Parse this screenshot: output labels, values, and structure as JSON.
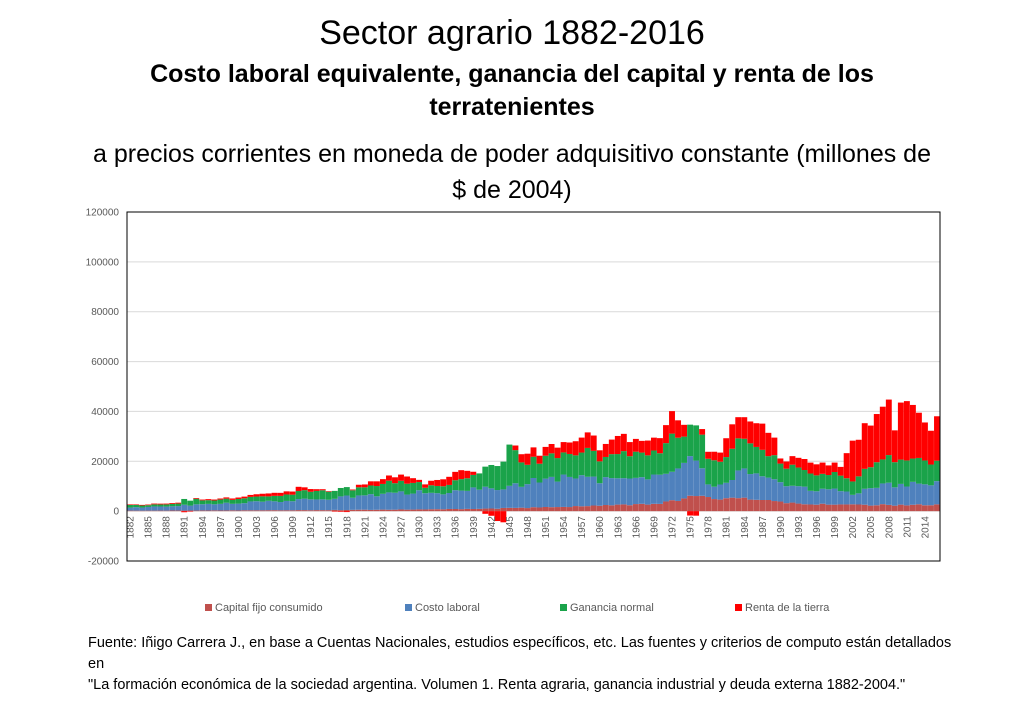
{
  "title": {
    "main": "Sector agrario 1882-2016",
    "subtitle": "Costo laboral equivalente, ganancia del capital y renta de los terratenientes",
    "subtitle2": "a precios corrientes en moneda de poder adquisitivo constante (millones de $ de 2004)"
  },
  "source": {
    "line1": "Fuente: Iñigo Carrera J.,  en base a Cuentas Nacionales, estudios específicos, etc. Las fuentes y criterios de computo están detallados en",
    "line2": "\"La formación económica de la sociedad argentina. Volumen 1. Renta agraria, ganancia industrial y deuda externa 1882-2004.\""
  },
  "chart_data": {
    "type": "bar",
    "stacked": true,
    "x_start": 1882,
    "x_end": 2016,
    "x_tick_labels": [
      "1882",
      "1885",
      "1888",
      "1891",
      "1894",
      "1897",
      "1900",
      "1903",
      "1906",
      "1909",
      "1912",
      "1915",
      "1918",
      "1921",
      "1924",
      "1927",
      "1930",
      "1933",
      "1936",
      "1939",
      "1942",
      "1945",
      "1948",
      "1951",
      "1954",
      "1957",
      "1960",
      "1963",
      "1966",
      "1969",
      "1972",
      "1975",
      "1978",
      "1981",
      "1984",
      "1987",
      "1990",
      "1993",
      "1996",
      "1999",
      "2002",
      "2005",
      "2008",
      "2011",
      "2014"
    ],
    "ylim": [
      -20000,
      120000
    ],
    "y_ticks": [
      -20000,
      0,
      20000,
      40000,
      60000,
      80000,
      100000,
      120000
    ],
    "y_tick_labels": [
      "-20000",
      "0",
      "20000",
      "40000",
      "60000",
      "80000",
      "100000",
      "120000"
    ],
    "grid": true,
    "legend_position": "bottom",
    "series": [
      {
        "name": "Capital fijo consumido",
        "color": "#C0504D",
        "anchors": [
          [
            1882,
            200
          ],
          [
            1900,
            300
          ],
          [
            1920,
            500
          ],
          [
            1940,
            900
          ],
          [
            1950,
            1500
          ],
          [
            1960,
            2200
          ],
          [
            1970,
            3000
          ],
          [
            1974,
            5000
          ],
          [
            1976,
            6000
          ],
          [
            1980,
            5000
          ],
          [
            1984,
            5500
          ],
          [
            1990,
            3500
          ],
          [
            1995,
            3000
          ],
          [
            2000,
            2500
          ],
          [
            2005,
            2500
          ],
          [
            2010,
            2500
          ],
          [
            2016,
            2500
          ]
        ]
      },
      {
        "name": "Costo laboral",
        "color": "#4F81BD",
        "anchors": [
          [
            1882,
            1200
          ],
          [
            1890,
            2000
          ],
          [
            1900,
            3000
          ],
          [
            1910,
            4000
          ],
          [
            1920,
            5500
          ],
          [
            1930,
            7000
          ],
          [
            1935,
            6500
          ],
          [
            1940,
            8000
          ],
          [
            1945,
            8500
          ],
          [
            1950,
            11000
          ],
          [
            1955,
            12000
          ],
          [
            1960,
            10000
          ],
          [
            1965,
            12000
          ],
          [
            1970,
            11000
          ],
          [
            1974,
            14000
          ],
          [
            1976,
            15000
          ],
          [
            1978,
            5000
          ],
          [
            1981,
            6000
          ],
          [
            1984,
            12000
          ],
          [
            1986,
            10000
          ],
          [
            1990,
            8000
          ],
          [
            1995,
            6000
          ],
          [
            2000,
            6000
          ],
          [
            2002,
            4000
          ],
          [
            2006,
            7500
          ],
          [
            2010,
            8500
          ],
          [
            2016,
            8500
          ]
        ]
      },
      {
        "name": "Ganancia normal",
        "color": "#1AA34A",
        "anchors": [
          [
            1882,
            1000
          ],
          [
            1885,
            800
          ],
          [
            1890,
            1000
          ],
          [
            1891,
            2500
          ],
          [
            1895,
            1500
          ],
          [
            1900,
            1800
          ],
          [
            1905,
            2000
          ],
          [
            1910,
            3000
          ],
          [
            1915,
            3500
          ],
          [
            1920,
            3000
          ],
          [
            1925,
            4500
          ],
          [
            1929,
            4000
          ],
          [
            1931,
            2500
          ],
          [
            1935,
            3500
          ],
          [
            1940,
            6000
          ],
          [
            1944,
            12000
          ],
          [
            1945,
            18000
          ],
          [
            1947,
            9000
          ],
          [
            1950,
            8000
          ],
          [
            1955,
            9000
          ],
          [
            1958,
            11000
          ],
          [
            1960,
            9000
          ],
          [
            1965,
            10000
          ],
          [
            1970,
            9000
          ],
          [
            1972,
            14000
          ],
          [
            1974,
            12000
          ],
          [
            1976,
            14000
          ],
          [
            1978,
            11000
          ],
          [
            1980,
            9000
          ],
          [
            1983,
            13000
          ],
          [
            1986,
            11000
          ],
          [
            1990,
            8000
          ],
          [
            1995,
            7000
          ],
          [
            2000,
            6000
          ],
          [
            2002,
            5000
          ],
          [
            2006,
            11000
          ],
          [
            2010,
            10000
          ],
          [
            2016,
            9000
          ]
        ]
      },
      {
        "name": "Renta de la tierra",
        "color": "#FF0000",
        "anchors": [
          [
            1882,
            200
          ],
          [
            1890,
            400
          ],
          [
            1891,
            -500
          ],
          [
            1893,
            300
          ],
          [
            1900,
            600
          ],
          [
            1910,
            1500
          ],
          [
            1917,
            -300
          ],
          [
            1918,
            -400
          ],
          [
            1920,
            1000
          ],
          [
            1928,
            3000
          ],
          [
            1930,
            1000
          ],
          [
            1935,
            3000
          ],
          [
            1937,
            4000
          ],
          [
            1940,
            0
          ],
          [
            1942,
            -2000
          ],
          [
            1943,
            -4500
          ],
          [
            1944,
            -5000
          ],
          [
            1945,
            0
          ],
          [
            1946,
            2000
          ],
          [
            1948,
            5000
          ],
          [
            1950,
            3000
          ],
          [
            1955,
            5000
          ],
          [
            1958,
            6000
          ],
          [
            1960,
            5000
          ],
          [
            1963,
            7000
          ],
          [
            1966,
            5000
          ],
          [
            1970,
            6000
          ],
          [
            1972,
            10000
          ],
          [
            1973,
            7000
          ],
          [
            1974,
            5000
          ],
          [
            1975,
            -2000
          ],
          [
            1976,
            -2000
          ],
          [
            1977,
            2000
          ],
          [
            1980,
            4000
          ],
          [
            1982,
            10000
          ],
          [
            1984,
            8000
          ],
          [
            1987,
            10000
          ],
          [
            1989,
            8000
          ],
          [
            1990,
            2000
          ],
          [
            1995,
            5000
          ],
          [
            2000,
            4000
          ],
          [
            2002,
            15000
          ],
          [
            2005,
            18000
          ],
          [
            2007,
            22000
          ],
          [
            2008,
            20000
          ],
          [
            2009,
            12000
          ],
          [
            2010,
            24000
          ],
          [
            2011,
            22000
          ],
          [
            2013,
            20000
          ],
          [
            2015,
            14000
          ],
          [
            2016,
            20000
          ]
        ]
      }
    ]
  }
}
